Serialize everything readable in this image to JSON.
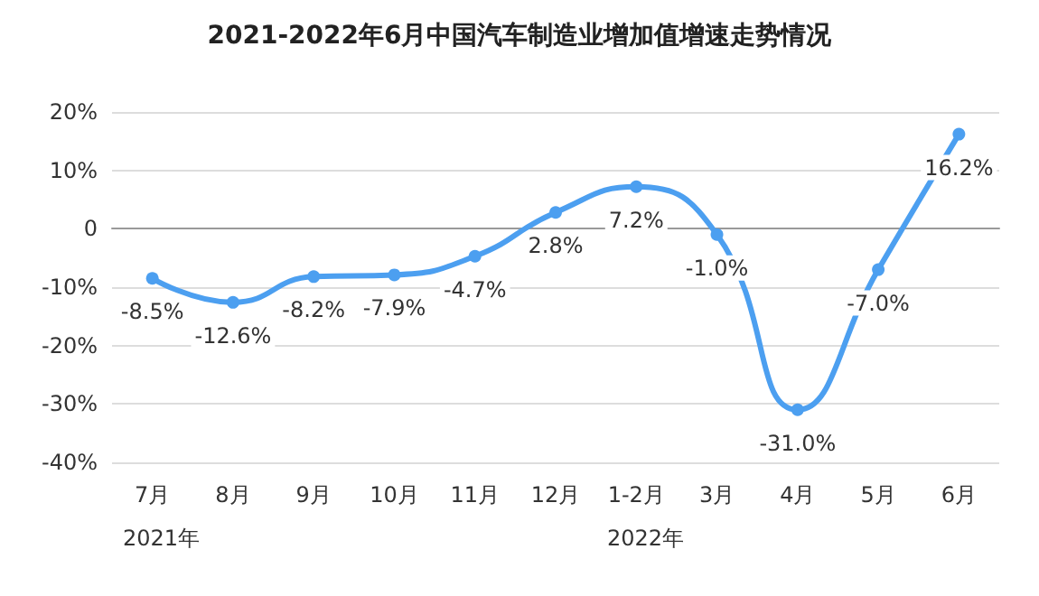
{
  "chart_data": {
    "type": "line",
    "title": "2021-2022年6月中国汽车制造业增加值增速走势情况",
    "categories": [
      "7月",
      "8月",
      "9月",
      "10月",
      "11月",
      "12月",
      "1-2月",
      "3月",
      "4月",
      "5月",
      "6月"
    ],
    "series": [
      {
        "color": "#4c9ff0",
        "values": [
          -8.5,
          -12.6,
          -8.2,
          -7.9,
          -4.7,
          2.8,
          7.2,
          -1.0,
          -31.0,
          -7.0,
          16.2
        ],
        "value_labels": [
          "-8.5%",
          "-12.6%",
          "-8.2%",
          "-7.9%",
          "-4.7%",
          "2.8%",
          "7.2%",
          "-1.0%",
          "-31.0%",
          "-7.0%",
          "16.2%"
        ]
      }
    ],
    "ylim": [
      -40,
      20
    ],
    "yticks": [
      {
        "value": -40,
        "label": "-40%"
      },
      {
        "value": -30,
        "label": "-30%"
      },
      {
        "value": -20,
        "label": "-20%"
      },
      {
        "value": -10,
        "label": "-10%"
      },
      {
        "value": 0,
        "label": "0"
      },
      {
        "value": 10,
        "label": "10%"
      },
      {
        "value": 20,
        "label": "20%"
      }
    ],
    "annotations": [
      "2021年",
      "2022年"
    ],
    "grid": "y",
    "marker": "circle",
    "line_style": "solid"
  }
}
